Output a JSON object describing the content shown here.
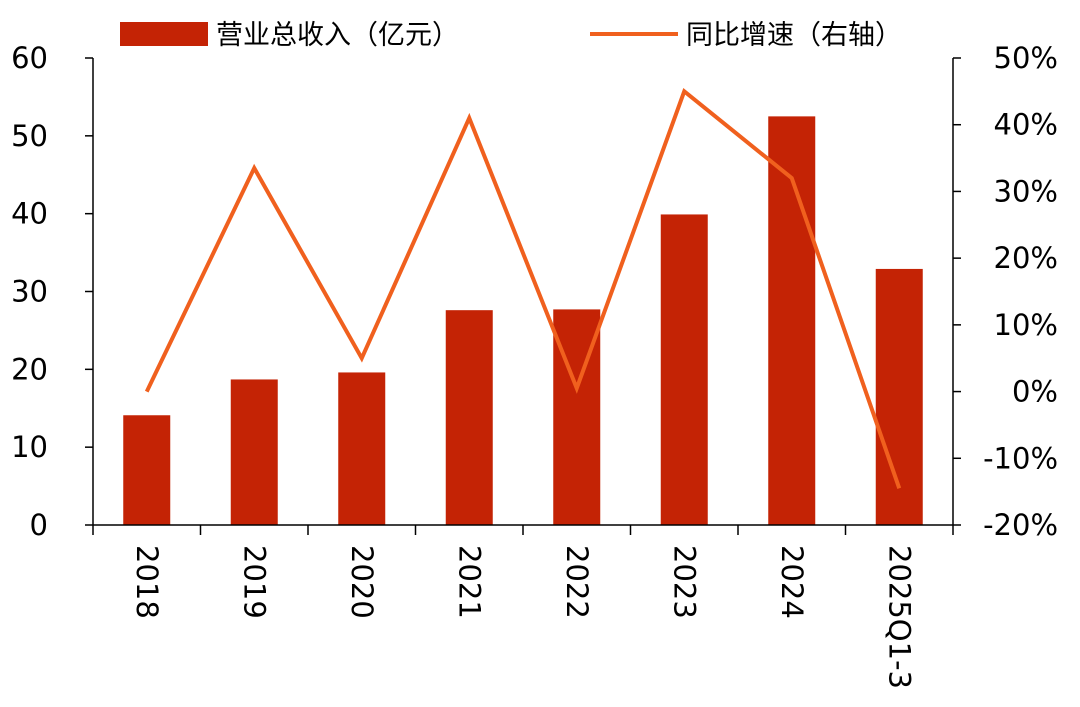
{
  "chart_data": {
    "type": "bar",
    "categories": [
      "2018",
      "2019",
      "2020",
      "2021",
      "2022",
      "2023",
      "2024",
      "2025Q1-3"
    ],
    "series": [
      {
        "name": "营业总收入（亿元）",
        "type": "bar",
        "axis": "left",
        "color": "#c42305",
        "values": [
          14.1,
          18.7,
          19.6,
          27.6,
          27.7,
          39.9,
          52.5,
          32.9
        ]
      },
      {
        "name": "同比增速（右轴）",
        "type": "line",
        "axis": "right",
        "color": "#f0601e",
        "values": [
          0.0,
          33.5,
          5.0,
          41.0,
          0.5,
          45.0,
          32.0,
          -14.5
        ]
      }
    ],
    "left_axis": {
      "ylim": [
        0,
        60
      ],
      "ticks": [
        "0",
        "10",
        "20",
        "30",
        "40",
        "50",
        "60"
      ]
    },
    "right_axis": {
      "ylim": [
        -20,
        50
      ],
      "unit": "%",
      "ticks": [
        "-20%",
        "-10%",
        "0%",
        "10%",
        "20%",
        "30%",
        "40%",
        "50%"
      ]
    },
    "x_tick_rotation": "vertical",
    "legend_position": "top",
    "grid": false
  }
}
